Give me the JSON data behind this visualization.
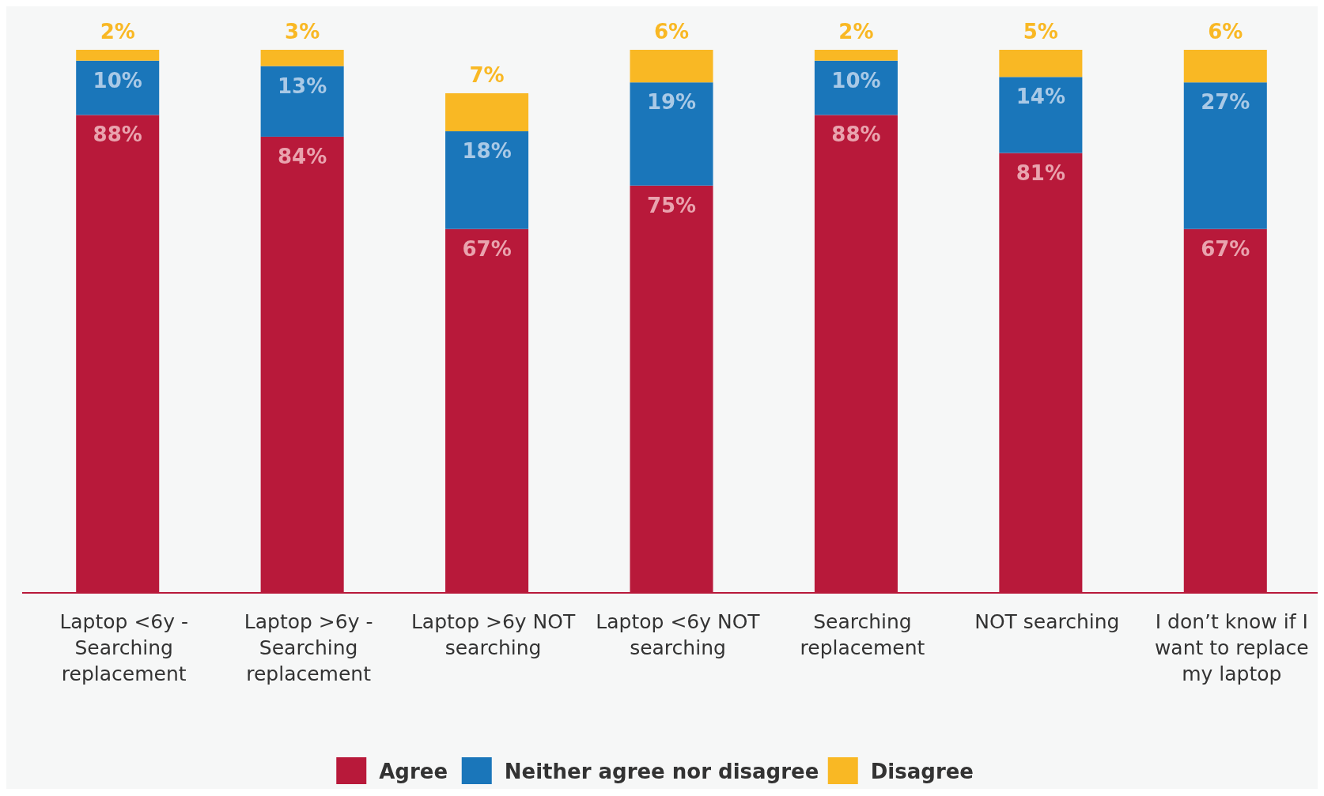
{
  "chart_data": {
    "type": "bar",
    "stacked": true,
    "legend": "bottom",
    "categories": [
      "Laptop <6y - Searching replacement",
      "Laptop >6y - Searching replacement",
      "Laptop >6y NOT searching",
      "Laptop <6y NOT searching",
      "Searching replacement",
      "NOT searching",
      "I don’t know if I want to replace my laptop"
    ],
    "series": [
      {
        "name": "Agree",
        "color": "#b8193a",
        "values": [
          88,
          84,
          67,
          75,
          88,
          81,
          67
        ],
        "value_labels": [
          "88%",
          "84%",
          "67%",
          "75%",
          "88%",
          "81%",
          "67%"
        ]
      },
      {
        "name": "Neither agree nor disagree",
        "color": "#1a76ba",
        "values": [
          10,
          13,
          18,
          19,
          10,
          14,
          27
        ],
        "value_labels": [
          "10%",
          "13%",
          "18%",
          "19%",
          "10%",
          "14%",
          "27%"
        ]
      },
      {
        "name": "Disagree",
        "color": "#f9b824",
        "values": [
          2,
          3,
          7,
          6,
          2,
          5,
          6
        ],
        "value_labels": [
          "2%",
          "3%",
          "7%",
          "6%",
          "2%",
          "5%",
          "6%"
        ]
      }
    ]
  }
}
